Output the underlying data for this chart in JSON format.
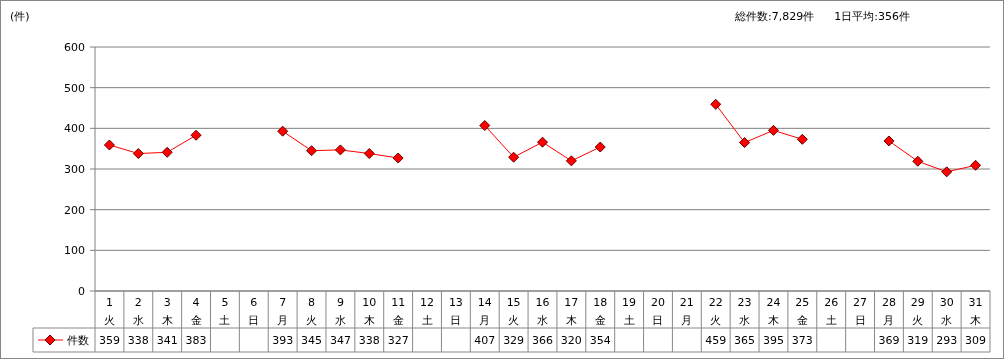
{
  "chart_data": {
    "type": "line",
    "ylabel": "(件)",
    "annotations": [
      "総件数:7,829件",
      "1日平均:356件"
    ],
    "categories": [
      "1\n火",
      "2\n水",
      "3\n木",
      "4\n金",
      "5\n土",
      "6\n日",
      "7\n月",
      "8\n火",
      "9\n水",
      "10\n木",
      "11\n金",
      "12\n土",
      "13\n日",
      "14\n月",
      "15\n火",
      "16\n水",
      "17\n木",
      "18\n金",
      "19\n土",
      "20\n日",
      "21\n月",
      "22\n火",
      "23\n水",
      "24\n木",
      "25\n金",
      "26\n土",
      "27\n日",
      "28\n月",
      "29\n火",
      "30\n水",
      "31\n木"
    ],
    "series": [
      {
        "name": "件数",
        "color": "#ff0000",
        "values": [
          359,
          338,
          341,
          383,
          null,
          null,
          393,
          345,
          347,
          338,
          327,
          null,
          null,
          407,
          329,
          366,
          320,
          354,
          null,
          null,
          null,
          459,
          365,
          395,
          373,
          null,
          null,
          369,
          319,
          293,
          309
        ]
      }
    ],
    "ylim": [
      0,
      600
    ],
    "yticks": [
      0,
      100,
      200,
      300,
      400,
      500,
      600
    ],
    "grid": "y",
    "marker": "diamond",
    "data_labels": true,
    "legend": "bottom"
  }
}
